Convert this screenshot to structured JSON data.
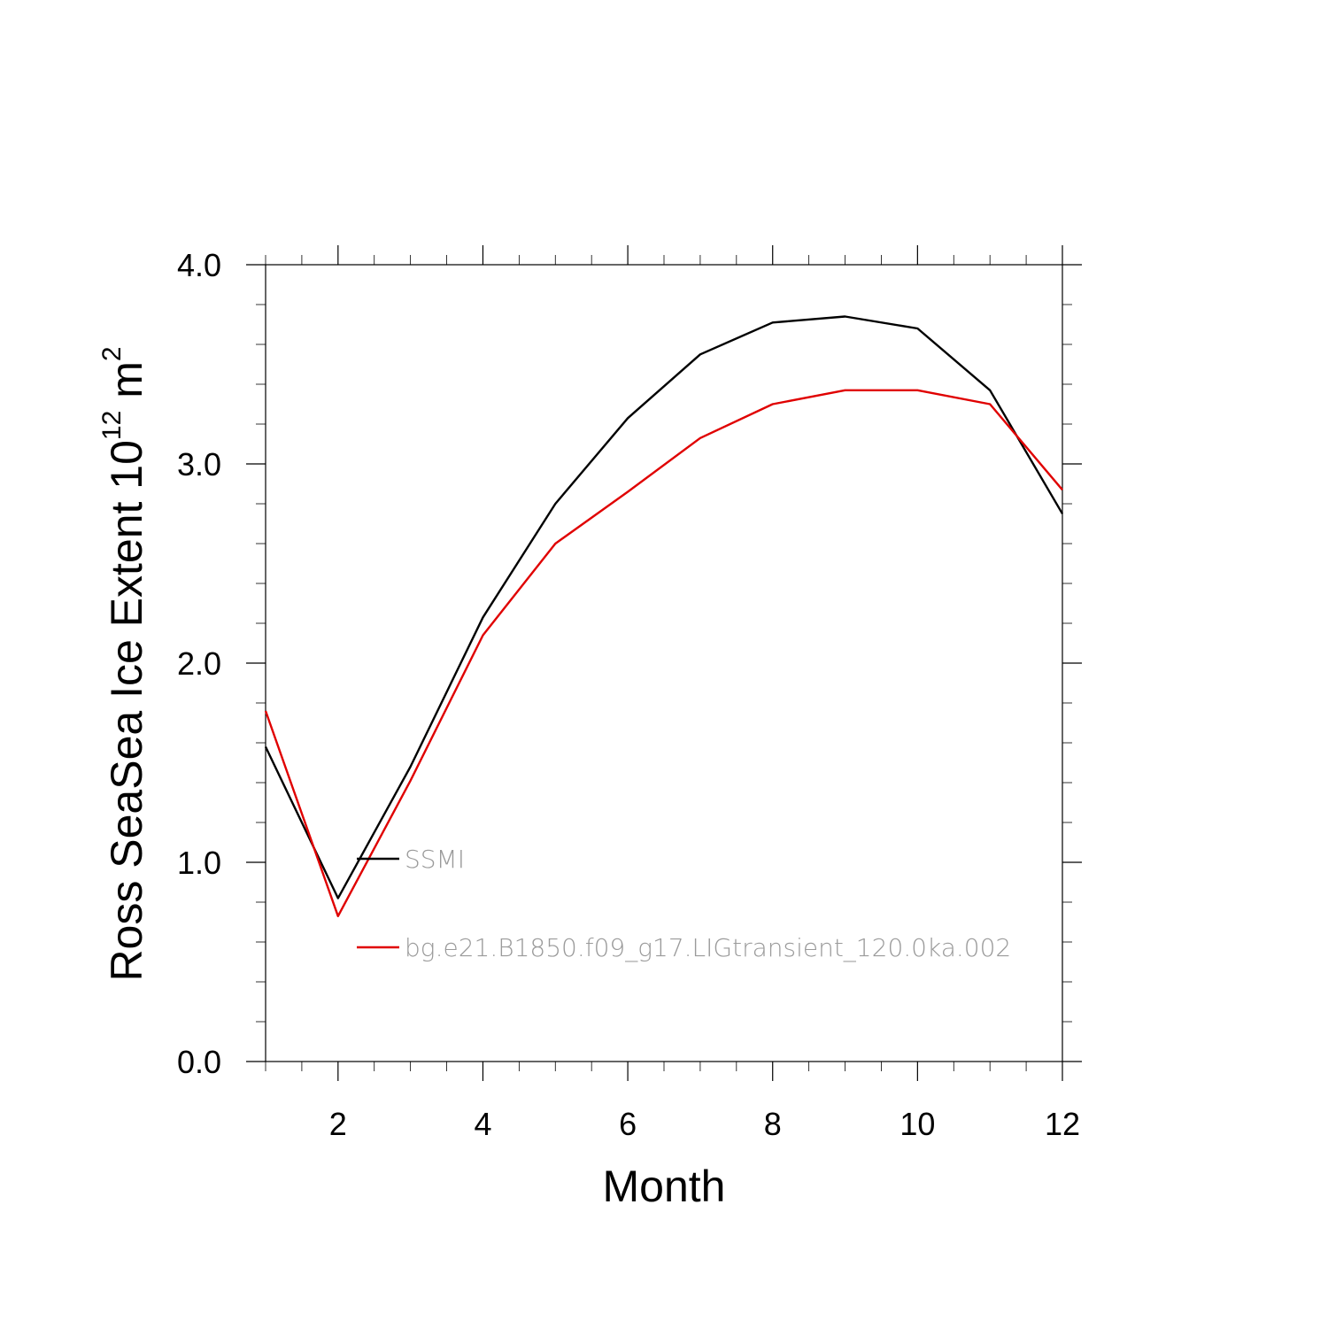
{
  "chart_data": {
    "type": "line",
    "xlabel": "Month",
    "ylabel": {
      "prefix": "Ross SeaSea Ice Extent 10",
      "superscript": "12",
      "middle": " m",
      "superscript2": "2"
    },
    "xlim": [
      1,
      12
    ],
    "ylim": [
      0.0,
      4.0
    ],
    "xticks": [
      2,
      4,
      6,
      8,
      10,
      12
    ],
    "xtick_labels": [
      "2",
      "4",
      "6",
      "8",
      "10",
      "12"
    ],
    "yticks": [
      0.0,
      1.0,
      2.0,
      3.0,
      4.0
    ],
    "ytick_labels": [
      "0.0",
      "1.0",
      "2.0",
      "3.0",
      "4.0"
    ],
    "grid": false,
    "legend_placement": "inside-lower-left",
    "x": [
      1,
      2,
      3,
      4,
      5,
      6,
      7,
      8,
      9,
      10,
      11,
      12
    ],
    "series": [
      {
        "name": "SSMI",
        "color": "#000000",
        "values": [
          1.58,
          0.82,
          1.48,
          2.23,
          2.8,
          3.23,
          3.55,
          3.71,
          3.74,
          3.68,
          3.37,
          2.75
        ]
      },
      {
        "name": "bg.e21.B1850.f09_g17.LIGtransient_120.0ka.002",
        "color": "#e00000",
        "values": [
          1.76,
          0.73,
          1.41,
          2.14,
          2.6,
          2.86,
          3.13,
          3.3,
          3.37,
          3.37,
          3.3,
          2.87
        ]
      }
    ]
  }
}
